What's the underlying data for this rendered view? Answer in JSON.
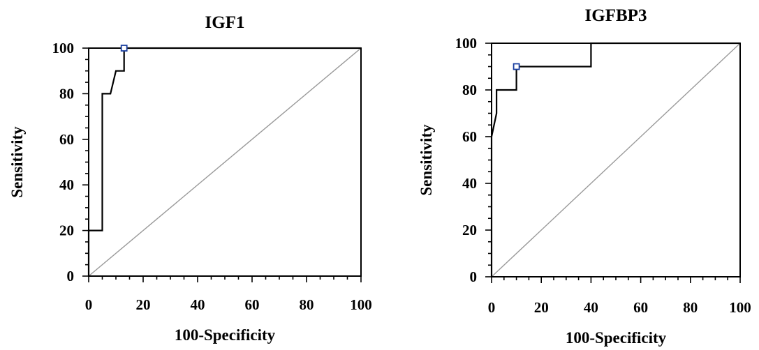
{
  "chart_data": [
    {
      "type": "line",
      "title": "IGF1",
      "xlabel": "100-Specificity",
      "ylabel": "Sensitivity",
      "xlim": [
        0,
        100
      ],
      "ylim": [
        0,
        100
      ],
      "xticks": [
        "0",
        "20",
        "40",
        "60",
        "80",
        "100"
      ],
      "yticks": [
        "0",
        "20",
        "40",
        "60",
        "80",
        "100"
      ],
      "grid": false,
      "series": [
        {
          "role": "roc",
          "color": "#000000",
          "x": [
            0,
            0,
            5,
            5,
            8,
            10,
            13,
            13,
            100
          ],
          "y": [
            0,
            20,
            20,
            80,
            80,
            90,
            90,
            100,
            100
          ]
        },
        {
          "role": "reference",
          "color": "#9a9a9a",
          "x": [
            0,
            100
          ],
          "y": [
            0,
            100
          ]
        }
      ],
      "optimal_point": {
        "x": 13,
        "y": 100,
        "color": "#1a3fa0"
      }
    },
    {
      "type": "line",
      "title": "IGFBP3",
      "xlabel": "100-Specificity",
      "ylabel": "Sensitivity",
      "xlim": [
        0,
        100
      ],
      "ylim": [
        0,
        100
      ],
      "xticks": [
        "0",
        "20",
        "40",
        "60",
        "80",
        "100"
      ],
      "yticks": [
        "0",
        "20",
        "40",
        "60",
        "80",
        "100"
      ],
      "grid": false,
      "series": [
        {
          "role": "roc",
          "color": "#000000",
          "x": [
            0,
            0,
            1,
            2,
            2,
            10,
            10,
            40,
            40,
            100
          ],
          "y": [
            0,
            60,
            65,
            70,
            80,
            80,
            90,
            90,
            100,
            100
          ]
        },
        {
          "role": "reference",
          "color": "#9a9a9a",
          "x": [
            0,
            100
          ],
          "y": [
            0,
            100
          ]
        }
      ],
      "optimal_point": {
        "x": 10,
        "y": 90,
        "color": "#1a3fa0"
      }
    }
  ]
}
